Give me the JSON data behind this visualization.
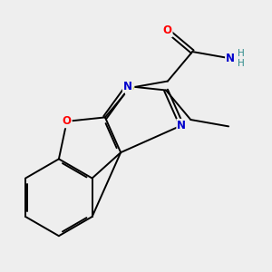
{
  "background_color": "#eeeeee",
  "bond_color": "#000000",
  "atom_colors": {
    "O": "#ff0000",
    "N": "#0000cc",
    "S": "#cccc00",
    "H": "#2e8b8b",
    "C": "#000000"
  },
  "figsize": [
    3.0,
    3.0
  ],
  "dpi": 100
}
